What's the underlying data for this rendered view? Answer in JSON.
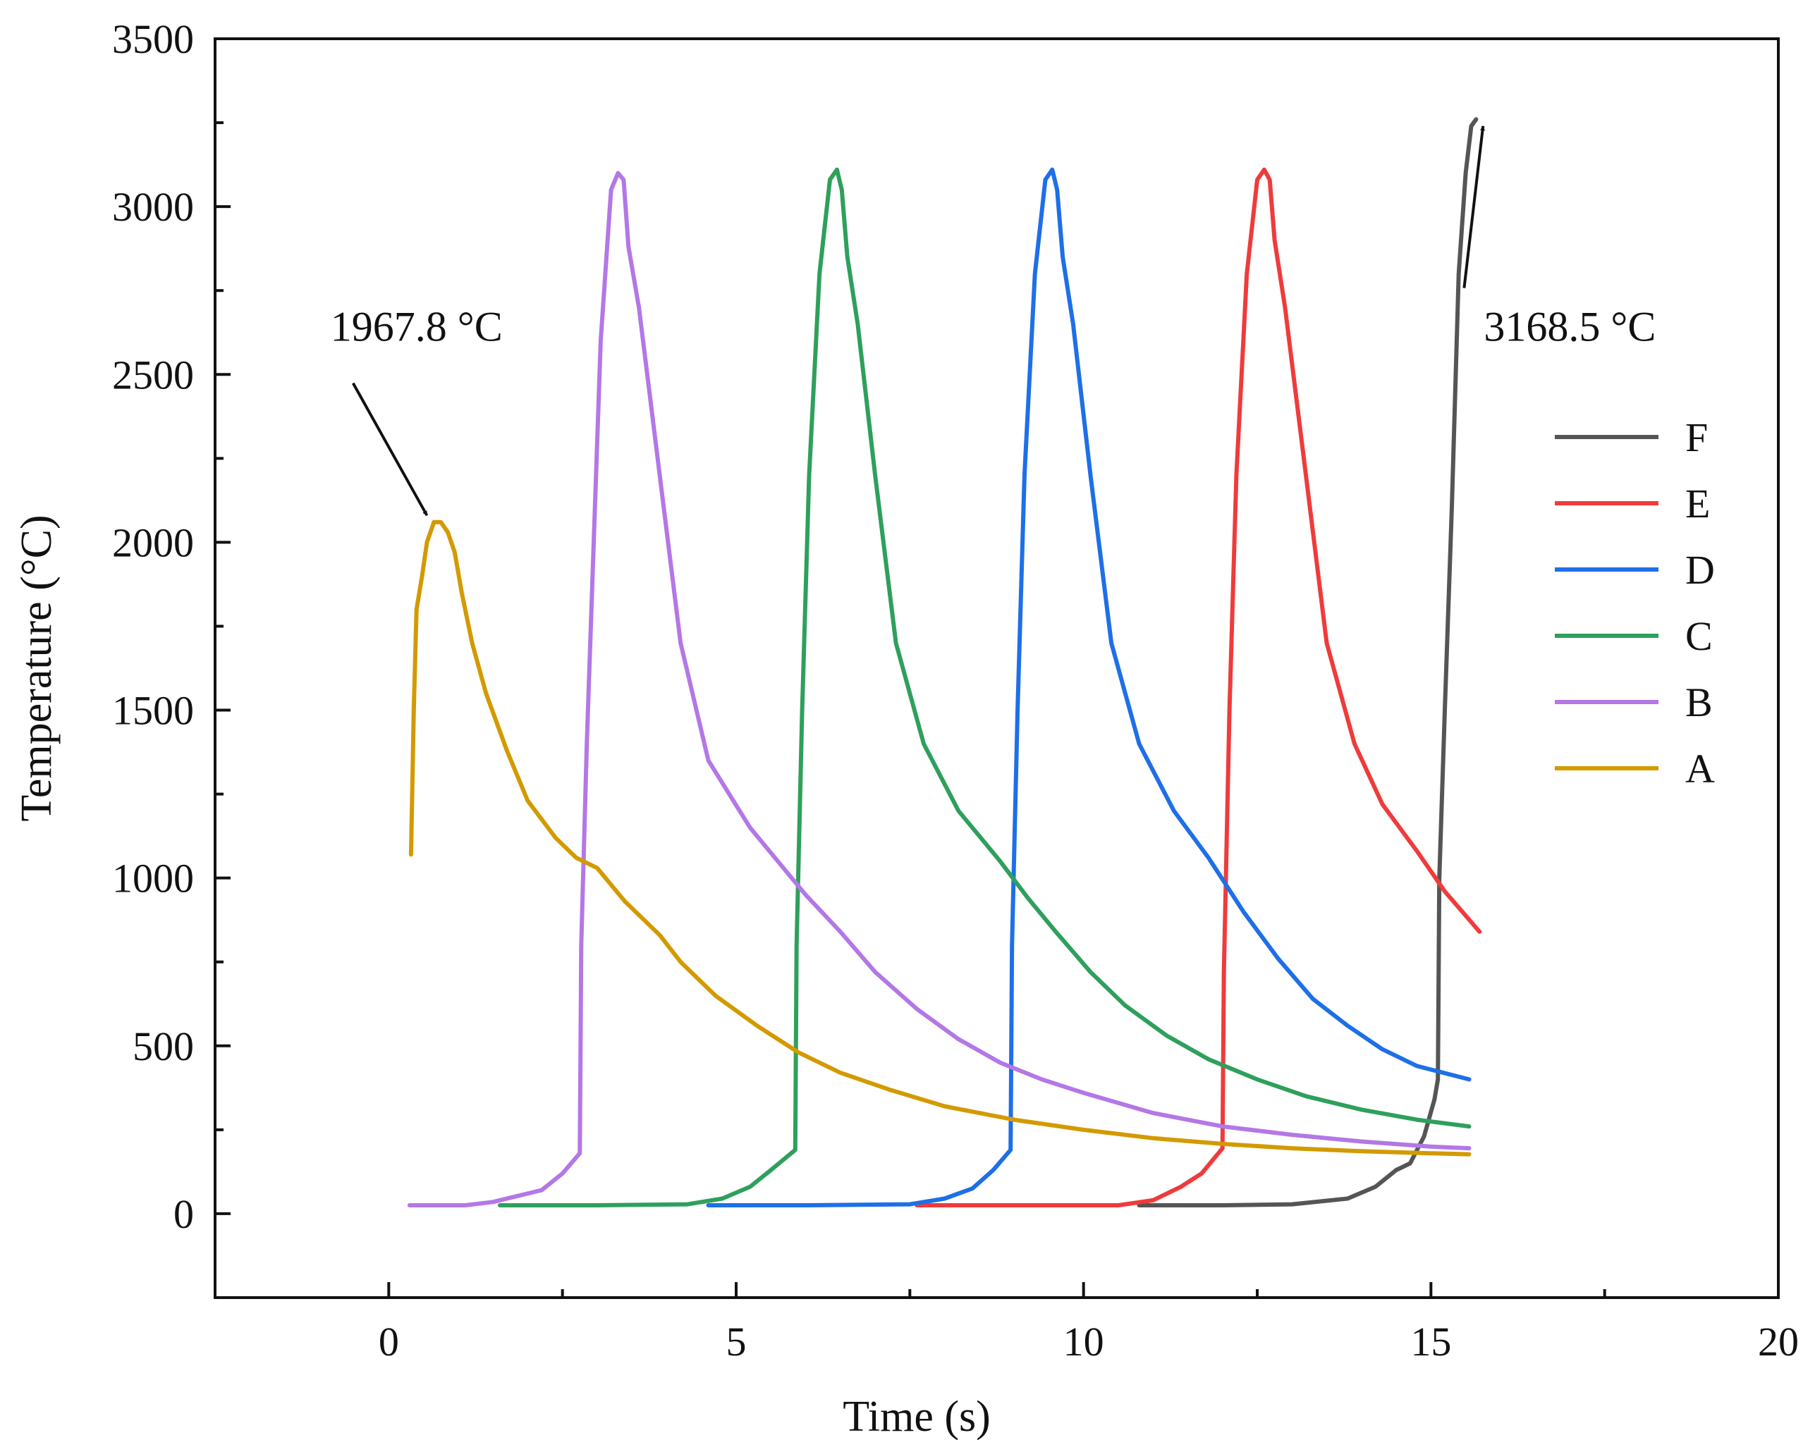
{
  "chart_data": {
    "type": "line",
    "title": "",
    "xlabel": "Time (s)",
    "ylabel": "Temperature (°C)",
    "xlim": [
      -2.5,
      20
    ],
    "ylim": [
      -250,
      3500
    ],
    "xticks": [
      0,
      5,
      10,
      15,
      20
    ],
    "yticks": [
      0,
      500,
      1000,
      1500,
      2000,
      2500,
      3000,
      3500
    ],
    "x_tick_labels": [
      "0",
      "5",
      "10",
      "15",
      "20"
    ],
    "y_tick_labels": [
      "0",
      "500",
      "1000",
      "1500",
      "2000",
      "2500",
      "3000",
      "3500"
    ],
    "grid": false,
    "legend_position": "right",
    "series": [
      {
        "name": "F",
        "color": "#555555",
        "points": [
          [
            10.8,
            25
          ],
          [
            12,
            25
          ],
          [
            13,
            28
          ],
          [
            13.8,
            45
          ],
          [
            14.2,
            80
          ],
          [
            14.5,
            130
          ],
          [
            14.7,
            150
          ],
          [
            14.9,
            230
          ],
          [
            15.05,
            340
          ],
          [
            15.1,
            400
          ],
          [
            15.12,
            1000
          ],
          [
            15.2,
            1500
          ],
          [
            15.3,
            2100
          ],
          [
            15.4,
            2800
          ],
          [
            15.5,
            3100
          ],
          [
            15.58,
            3240
          ],
          [
            15.65,
            3260
          ]
        ]
      },
      {
        "name": "E",
        "color": "#ef3b3b",
        "points": [
          [
            7.6,
            25
          ],
          [
            9,
            25
          ],
          [
            10.5,
            25
          ],
          [
            11,
            40
          ],
          [
            11.4,
            80
          ],
          [
            11.7,
            120
          ],
          [
            12.0,
            195
          ],
          [
            12.02,
            720
          ],
          [
            12.1,
            1500
          ],
          [
            12.2,
            2200
          ],
          [
            12.35,
            2800
          ],
          [
            12.5,
            3080
          ],
          [
            12.6,
            3110
          ],
          [
            12.68,
            3080
          ],
          [
            12.75,
            2900
          ],
          [
            12.9,
            2700
          ],
          [
            13.2,
            2200
          ],
          [
            13.5,
            1700
          ],
          [
            13.9,
            1400
          ],
          [
            14.3,
            1220
          ],
          [
            14.8,
            1080
          ],
          [
            15.2,
            960
          ],
          [
            15.7,
            840
          ]
        ]
      },
      {
        "name": "D",
        "color": "#1e6fe8",
        "points": [
          [
            4.6,
            25
          ],
          [
            6,
            25
          ],
          [
            7.5,
            28
          ],
          [
            8.0,
            45
          ],
          [
            8.4,
            75
          ],
          [
            8.7,
            130
          ],
          [
            8.95,
            190
          ],
          [
            8.97,
            800
          ],
          [
            9.05,
            1500
          ],
          [
            9.15,
            2200
          ],
          [
            9.3,
            2800
          ],
          [
            9.45,
            3080
          ],
          [
            9.55,
            3110
          ],
          [
            9.62,
            3050
          ],
          [
            9.7,
            2850
          ],
          [
            9.85,
            2650
          ],
          [
            10.1,
            2200
          ],
          [
            10.4,
            1700
          ],
          [
            10.8,
            1400
          ],
          [
            11.3,
            1200
          ],
          [
            11.8,
            1060
          ],
          [
            12.3,
            900
          ],
          [
            12.8,
            760
          ],
          [
            13.3,
            640
          ],
          [
            13.8,
            560
          ],
          [
            14.3,
            490
          ],
          [
            14.8,
            440
          ],
          [
            15.55,
            400
          ]
        ]
      },
      {
        "name": "C",
        "color": "#2ea05c",
        "points": [
          [
            1.6,
            25
          ],
          [
            3,
            25
          ],
          [
            4.3,
            28
          ],
          [
            4.8,
            45
          ],
          [
            5.2,
            80
          ],
          [
            5.5,
            130
          ],
          [
            5.85,
            190
          ],
          [
            5.87,
            800
          ],
          [
            5.95,
            1500
          ],
          [
            6.05,
            2200
          ],
          [
            6.2,
            2800
          ],
          [
            6.35,
            3080
          ],
          [
            6.45,
            3110
          ],
          [
            6.52,
            3050
          ],
          [
            6.6,
            2850
          ],
          [
            6.75,
            2650
          ],
          [
            7.0,
            2200
          ],
          [
            7.3,
            1700
          ],
          [
            7.7,
            1400
          ],
          [
            8.2,
            1200
          ],
          [
            8.8,
            1050
          ],
          [
            9.2,
            940
          ],
          [
            9.6,
            840
          ],
          [
            10.1,
            720
          ],
          [
            10.6,
            620
          ],
          [
            11.2,
            530
          ],
          [
            11.8,
            460
          ],
          [
            12.5,
            400
          ],
          [
            13.2,
            350
          ],
          [
            14,
            310
          ],
          [
            14.8,
            280
          ],
          [
            15.55,
            260
          ]
        ]
      },
      {
        "name": "B",
        "color": "#b377e6",
        "points": [
          [
            0.3,
            25
          ],
          [
            1.1,
            25
          ],
          [
            1.5,
            35
          ],
          [
            1.8,
            50
          ],
          [
            2.2,
            70
          ],
          [
            2.5,
            120
          ],
          [
            2.75,
            180
          ],
          [
            2.77,
            800
          ],
          [
            2.85,
            1400
          ],
          [
            2.95,
            2000
          ],
          [
            3.05,
            2600
          ],
          [
            3.2,
            3050
          ],
          [
            3.3,
            3100
          ],
          [
            3.38,
            3080
          ],
          [
            3.45,
            2880
          ],
          [
            3.6,
            2700
          ],
          [
            3.9,
            2200
          ],
          [
            4.2,
            1700
          ],
          [
            4.6,
            1350
          ],
          [
            5.2,
            1150
          ],
          [
            5.6,
            1050
          ],
          [
            6.0,
            950
          ],
          [
            6.5,
            840
          ],
          [
            7.0,
            720
          ],
          [
            7.6,
            610
          ],
          [
            8.2,
            520
          ],
          [
            8.8,
            450
          ],
          [
            9.4,
            400
          ],
          [
            10,
            360
          ],
          [
            11,
            300
          ],
          [
            12,
            260
          ],
          [
            13,
            235
          ],
          [
            14,
            215
          ],
          [
            15,
            200
          ],
          [
            15.55,
            195
          ]
        ]
      },
      {
        "name": "A",
        "color": "#d39a00",
        "points": [
          [
            0.32,
            1070
          ],
          [
            0.36,
            1500
          ],
          [
            0.4,
            1800
          ],
          [
            0.48,
            1900
          ],
          [
            0.55,
            2000
          ],
          [
            0.65,
            2060
          ],
          [
            0.75,
            2060
          ],
          [
            0.85,
            2030
          ],
          [
            0.95,
            1970
          ],
          [
            1.05,
            1850
          ],
          [
            1.2,
            1700
          ],
          [
            1.4,
            1550
          ],
          [
            1.7,
            1380
          ],
          [
            2.0,
            1230
          ],
          [
            2.4,
            1120
          ],
          [
            2.7,
            1060
          ],
          [
            3.0,
            1030
          ],
          [
            3.4,
            930
          ],
          [
            3.9,
            830
          ],
          [
            4.2,
            750
          ],
          [
            4.7,
            650
          ],
          [
            5.3,
            560
          ],
          [
            5.9,
            480
          ],
          [
            6.5,
            420
          ],
          [
            7.2,
            370
          ],
          [
            8,
            320
          ],
          [
            9,
            280
          ],
          [
            10,
            250
          ],
          [
            11,
            225
          ],
          [
            12,
            208
          ],
          [
            13,
            195
          ],
          [
            14,
            186
          ],
          [
            15,
            180
          ],
          [
            15.55,
            177
          ]
        ]
      }
    ],
    "annotations": [
      {
        "text": "1967.8 °C",
        "target": [
          0.55,
          2080
        ],
        "text_at": [
          0.4,
          2600
        ]
      },
      {
        "text": "3168.5 °C",
        "target": [
          15.75,
          3240
        ],
        "text_at": [
          17.0,
          2600
        ]
      }
    ]
  }
}
